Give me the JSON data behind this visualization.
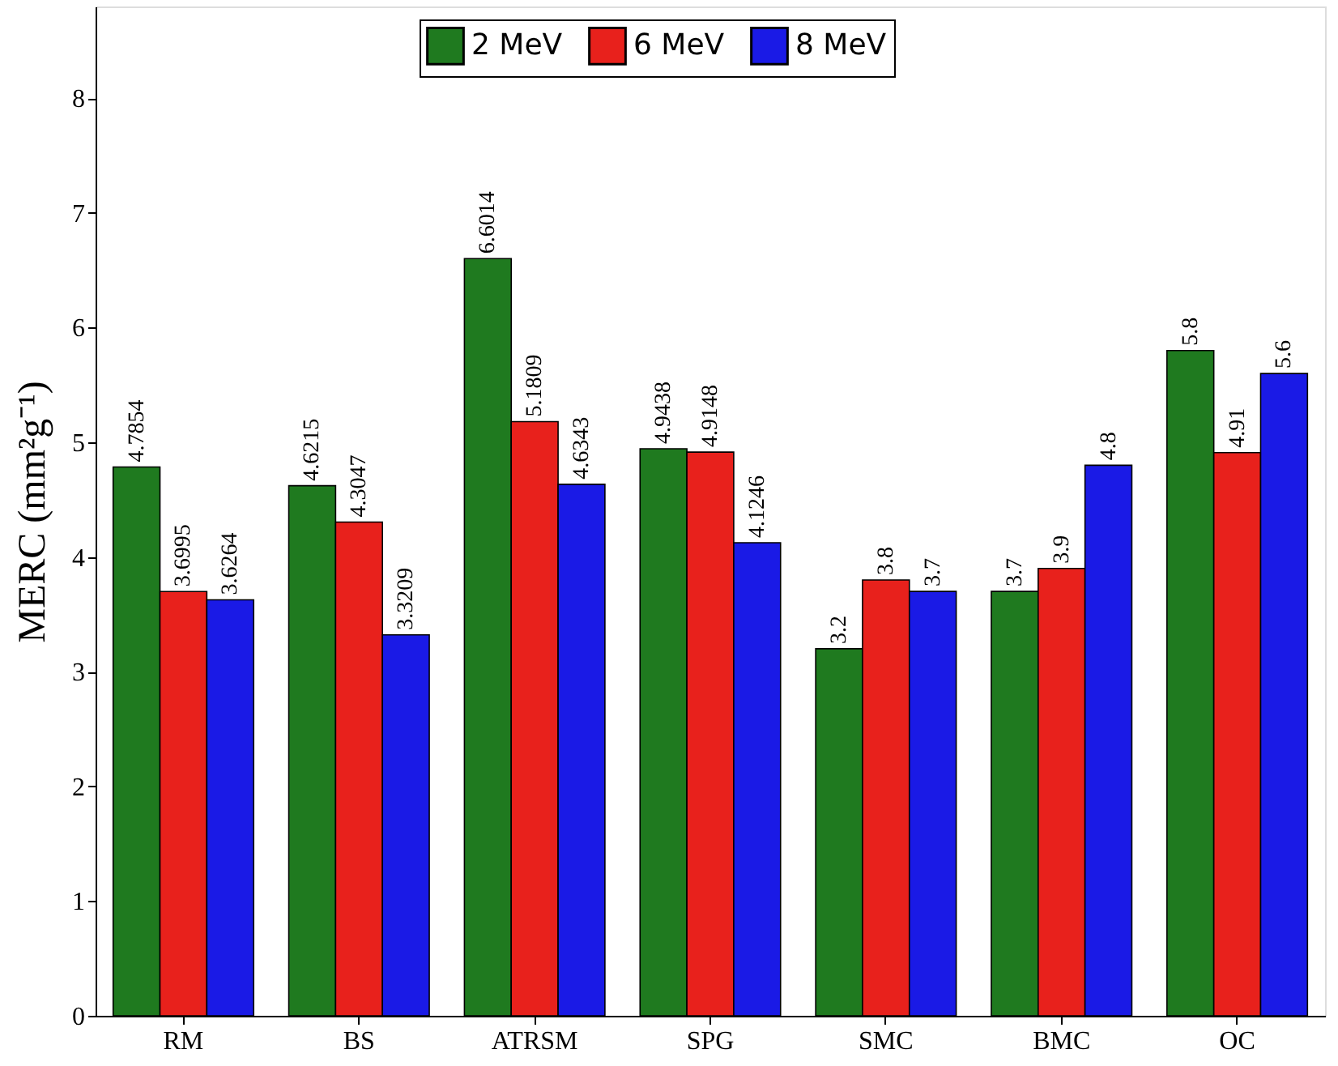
{
  "chart_data": {
    "type": "bar",
    "ylabel": "MERC (mm²g⁻¹)",
    "categories": [
      "RM",
      "BS",
      "ATRSM",
      "SPG",
      "SMC",
      "BMC",
      "OC"
    ],
    "series": [
      {
        "name": "2 MeV",
        "color": "#1f7a1f",
        "values": [
          4.7854,
          4.6215,
          6.6014,
          4.9438,
          3.2,
          3.7,
          5.8
        ]
      },
      {
        "name": "6 MeV",
        "color": "#e8211c",
        "values": [
          3.6995,
          4.3047,
          5.1809,
          4.9148,
          3.8,
          3.9,
          4.91
        ]
      },
      {
        "name": "8 MeV",
        "color": "#1a1ae6",
        "values": [
          3.6264,
          3.3209,
          4.6343,
          4.1246,
          3.7,
          4.8,
          5.6
        ]
      }
    ],
    "ylim": [
      0,
      8.8
    ],
    "yticks": [
      0,
      1,
      2,
      3,
      4,
      5,
      6,
      7,
      8
    ],
    "grid": false,
    "legend": "top",
    "data_labels": true
  }
}
